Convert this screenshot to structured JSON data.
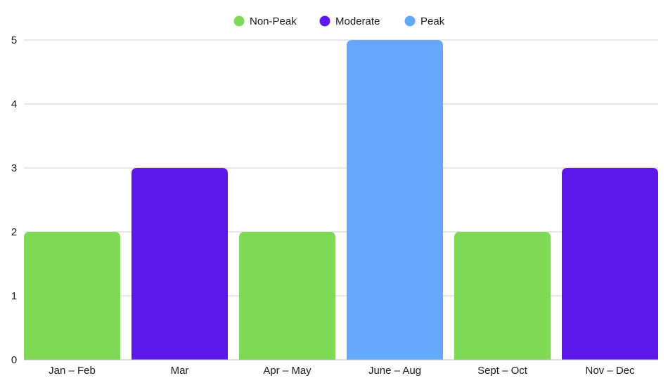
{
  "chart_data": {
    "type": "bar",
    "categories": [
      "Jan – Feb",
      "Mar",
      "Apr – May",
      "June – Aug",
      "Sept – Oct",
      "Nov – Dec"
    ],
    "values": [
      2,
      3,
      2,
      5,
      2,
      3
    ],
    "bar_groups": [
      "Non-Peak",
      "Moderate",
      "Non-Peak",
      "Peak",
      "Non-Peak",
      "Moderate"
    ],
    "legend": [
      {
        "name": "Non-Peak",
        "color": "#7ed957"
      },
      {
        "name": "Moderate",
        "color": "#5e17eb"
      },
      {
        "name": "Peak",
        "color": "#65a8fb"
      }
    ],
    "legend_position": "top-center",
    "yticks": [
      "0",
      "1",
      "2",
      "3",
      "4",
      "5"
    ],
    "ylim": [
      0,
      5
    ],
    "grid": true,
    "title": "",
    "xlabel": "",
    "ylabel": ""
  }
}
